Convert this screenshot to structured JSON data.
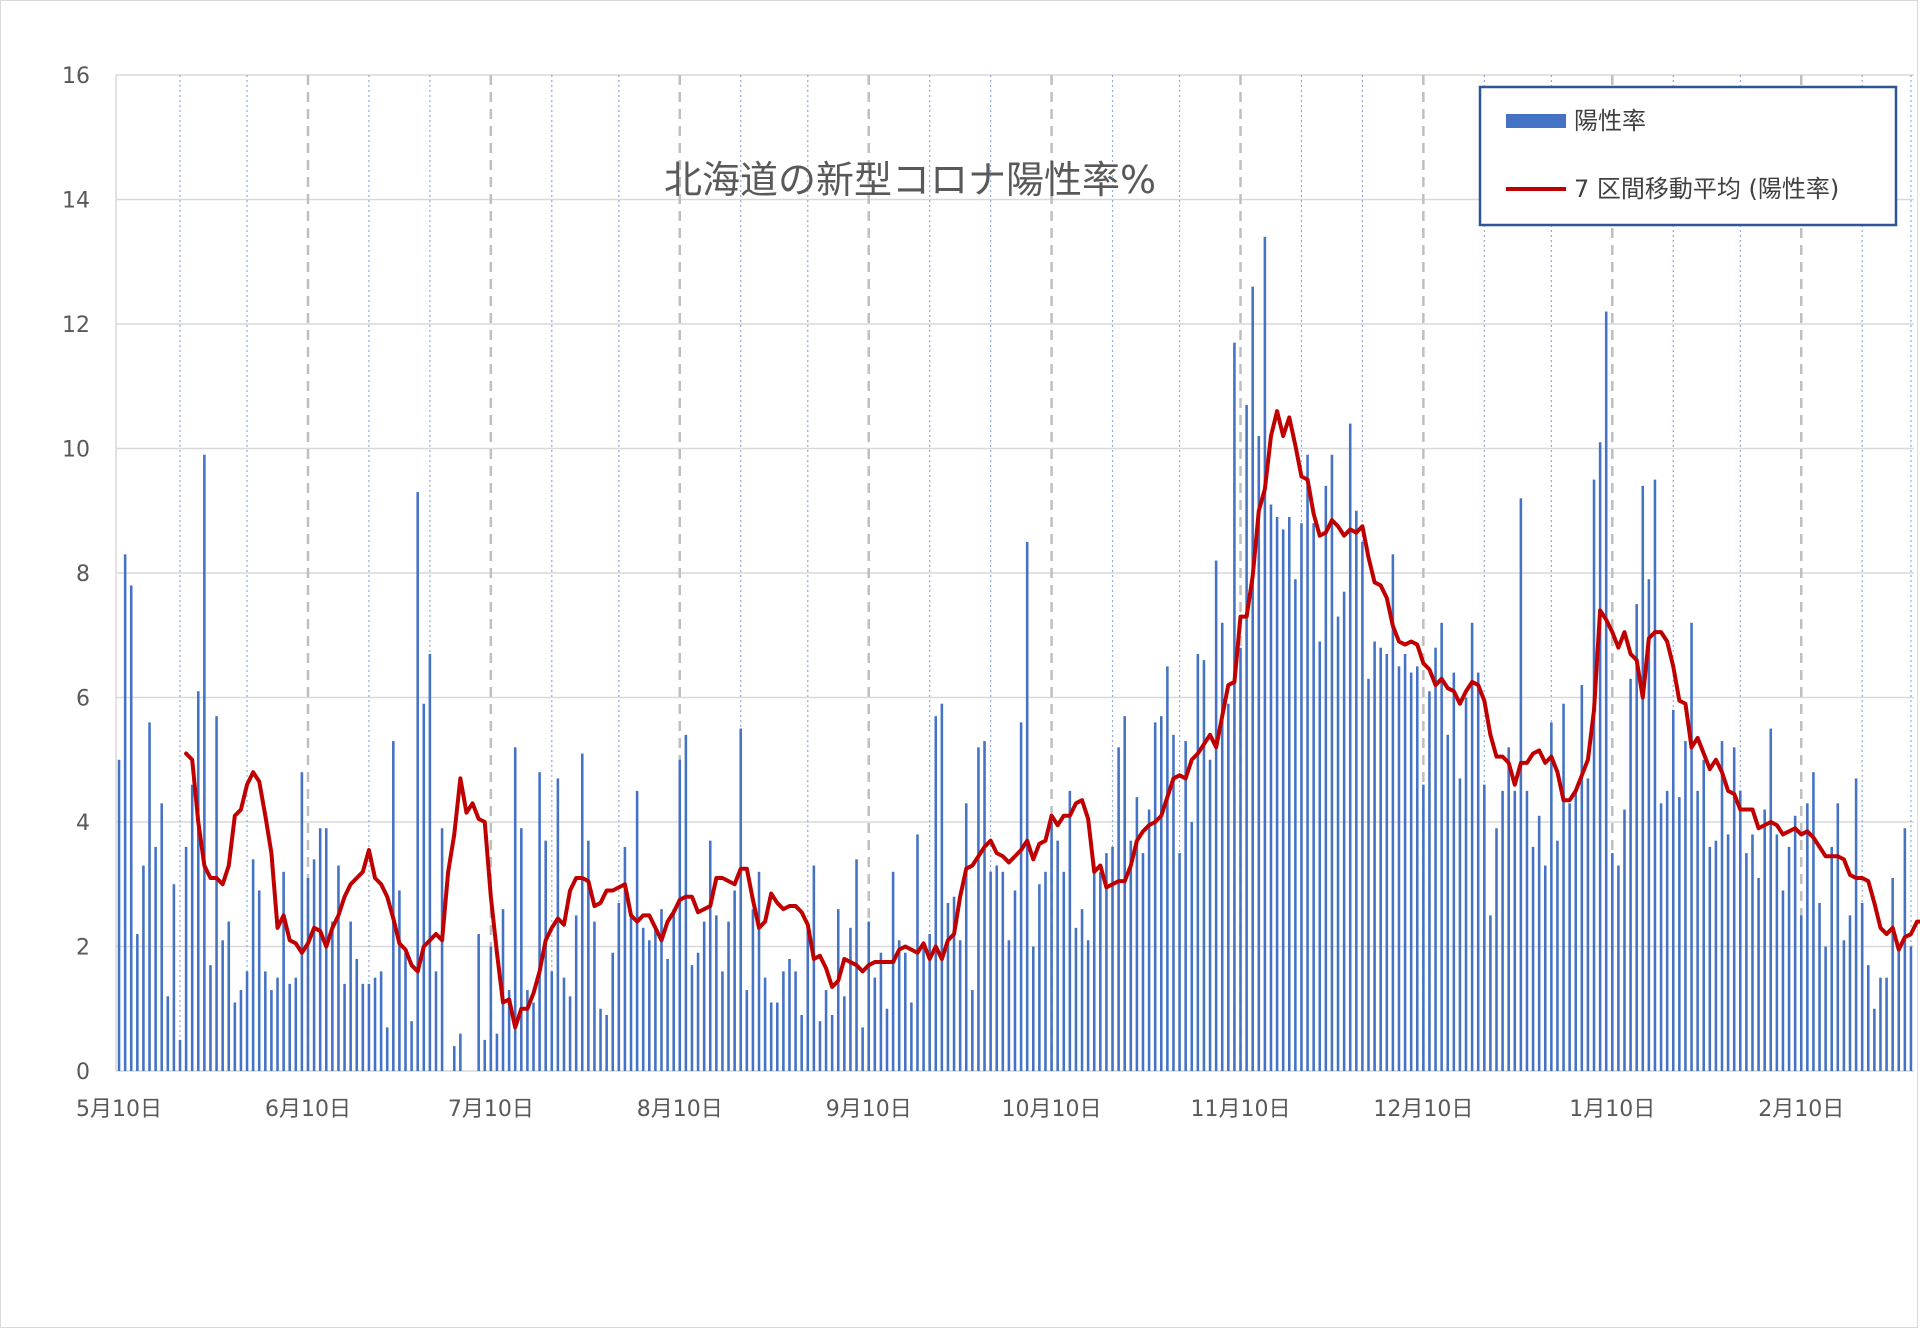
{
  "chart_data": {
    "type": "bar",
    "title": "北海道の新型コロナ陽性率%",
    "xlabel": "",
    "ylabel": "",
    "ylim": [
      0,
      16
    ],
    "yticks": [
      "0",
      "2",
      "4",
      "6",
      "8",
      "10",
      "12",
      "14",
      "16"
    ],
    "x_start": "2020-05-10",
    "x_end": "2021-02-28",
    "x_tick_labels": [
      "5月10日",
      "6月10日",
      "7月10日",
      "8月10日",
      "9月10日",
      "10月10日",
      "11月10日",
      "12月10日",
      "1月10日",
      "2月10日"
    ],
    "x_tick_dates": [
      "2020-05-10",
      "2020-06-10",
      "2020-07-10",
      "2020-08-10",
      "2020-09-10",
      "2020-10-10",
      "2020-11-10",
      "2020-12-10",
      "2021-01-10",
      "2021-02-10"
    ],
    "grid": true,
    "legend_position": "top-right",
    "series": [
      {
        "name": "陽性率",
        "kind": "bar",
        "color": "#4472c4",
        "values": [
          5.0,
          8.3,
          7.8,
          2.2,
          3.3,
          5.6,
          3.6,
          4.3,
          1.2,
          3.0,
          0.5,
          3.6,
          4.6,
          6.1,
          9.9,
          1.7,
          5.7,
          2.1,
          2.4,
          1.1,
          1.3,
          1.6,
          3.4,
          2.9,
          1.6,
          1.3,
          1.5,
          3.2,
          1.4,
          1.5,
          4.8,
          3.1,
          3.4,
          3.9,
          3.9,
          2.4,
          3.3,
          1.4,
          2.4,
          1.8,
          1.4,
          1.4,
          1.5,
          1.6,
          0.7,
          5.3,
          2.9,
          1.9,
          0.8,
          9.3,
          5.9,
          6.7,
          1.6,
          3.9,
          0.0,
          0.4,
          0.6,
          0.0,
          0.0,
          2.2,
          0.5,
          2.0,
          0.6,
          2.6,
          1.3,
          5.2,
          3.9,
          1.3,
          1.1,
          4.8,
          3.7,
          1.6,
          4.7,
          1.5,
          1.2,
          2.5,
          5.1,
          3.7,
          2.4,
          1.0,
          0.9,
          1.9,
          2.7,
          3.6,
          2.5,
          4.5,
          2.3,
          2.1,
          2.3,
          2.6,
          1.8,
          2.6,
          5.0,
          5.4,
          1.7,
          1.9,
          2.4,
          3.7,
          2.5,
          1.6,
          2.4,
          2.9,
          5.5,
          1.3,
          2.6,
          3.2,
          1.5,
          1.1,
          1.1,
          1.6,
          1.8,
          1.6,
          0.9,
          2.3,
          3.3,
          0.8,
          1.3,
          0.9,
          2.6,
          1.2,
          2.3,
          3.4,
          0.7,
          2.4,
          1.5,
          1.9,
          1.0,
          3.2,
          2.1,
          1.9,
          1.1,
          3.8,
          2.0,
          2.2,
          5.7,
          5.9,
          2.7,
          2.8,
          2.1,
          4.3,
          1.3,
          5.2,
          5.3,
          3.2,
          3.3,
          3.2,
          2.1,
          2.9,
          5.6,
          8.5,
          2.0,
          3.0,
          3.2,
          4.0,
          3.7,
          3.2,
          4.5,
          2.3,
          2.6,
          2.1,
          3.3,
          3.2,
          3.5,
          3.6,
          5.2,
          5.7,
          3.7,
          4.4,
          3.5,
          4.2,
          5.6,
          5.7,
          6.5,
          5.4,
          3.5,
          5.3,
          4.0,
          6.7,
          6.6,
          5.0,
          8.2,
          7.2,
          5.9,
          11.7,
          6.8,
          10.7,
          12.6,
          10.2,
          13.4,
          9.1,
          8.9,
          8.7,
          8.9,
          7.9,
          8.8,
          9.9,
          8.8,
          6.9,
          9.4,
          9.9,
          7.3,
          7.7,
          10.4,
          9.0,
          8.5,
          6.3,
          6.9,
          6.8,
          6.7,
          8.3,
          6.5,
          6.7,
          6.4,
          6.5,
          4.6,
          6.1,
          6.8,
          7.2,
          5.4,
          6.4,
          4.7,
          6.0,
          7.2,
          6.4,
          4.6,
          2.5,
          3.9,
          4.5,
          5.2,
          4.5,
          9.2,
          4.5,
          3.6,
          4.1,
          3.3,
          5.6,
          3.7,
          5.9,
          4.3,
          4.5,
          6.2,
          4.7,
          9.5,
          10.1,
          12.2,
          3.5,
          3.3,
          4.2,
          6.3,
          7.5,
          9.4,
          7.9,
          9.5,
          4.3,
          4.5,
          5.8,
          4.4,
          5.3,
          7.2,
          4.5,
          5.0,
          3.6,
          3.7,
          5.3,
          3.8,
          5.2,
          4.5,
          3.5,
          3.8,
          3.1,
          4.2,
          5.5,
          3.8,
          2.9,
          3.6,
          4.1,
          2.5,
          4.3,
          4.8,
          2.7,
          2.0,
          3.6,
          4.3,
          2.1,
          2.5,
          4.7,
          2.7,
          1.7,
          1.0,
          1.5,
          1.5,
          3.1,
          2.0,
          3.9,
          2.0,
          2.5,
          1.4,
          1.9,
          1.9
        ]
      },
      {
        "name": "7 区間移動平均 (陽性率)",
        "kind": "line",
        "color": "#c00000",
        "values": [
          5.1,
          5.0,
          4.0,
          3.3,
          3.1,
          3.1,
          3.0,
          3.3,
          4.1,
          4.2,
          4.6,
          4.8,
          4.65,
          4.1,
          3.5,
          2.3,
          2.5,
          2.1,
          2.05,
          1.9,
          2.05,
          2.3,
          2.25,
          2.0,
          2.3,
          2.5,
          2.8,
          3.0,
          3.1,
          3.2,
          3.55,
          3.1,
          3.0,
          2.8,
          2.45,
          2.05,
          1.95,
          1.7,
          1.6,
          2.0,
          2.1,
          2.2,
          2.1,
          3.2,
          3.8,
          4.7,
          4.15,
          4.3,
          4.05,
          4.0,
          2.8,
          1.9,
          1.1,
          1.15,
          0.7,
          1.0,
          1.0,
          1.25,
          1.6,
          2.1,
          2.3,
          2.45,
          2.35,
          2.9,
          3.1,
          3.1,
          3.05,
          2.65,
          2.7,
          2.9,
          2.9,
          2.95,
          3.0,
          2.5,
          2.4,
          2.5,
          2.5,
          2.3,
          2.1,
          2.4,
          2.55,
          2.75,
          2.8,
          2.8,
          2.55,
          2.6,
          2.65,
          3.1,
          3.1,
          3.05,
          3.0,
          3.25,
          3.25,
          2.75,
          2.3,
          2.4,
          2.85,
          2.7,
          2.6,
          2.65,
          2.65,
          2.55,
          2.35,
          1.8,
          1.85,
          1.65,
          1.35,
          1.45,
          1.8,
          1.75,
          1.7,
          1.6,
          1.7,
          1.75,
          1.75,
          1.75,
          1.75,
          1.95,
          2.0,
          1.95,
          1.9,
          2.05,
          1.8,
          2.0,
          1.8,
          2.1,
          2.2,
          2.8,
          3.25,
          3.3,
          3.45,
          3.6,
          3.7,
          3.5,
          3.45,
          3.35,
          3.45,
          3.55,
          3.7,
          3.4,
          3.65,
          3.7,
          4.1,
          3.95,
          4.1,
          4.1,
          4.3,
          4.35,
          4.05,
          3.2,
          3.3,
          2.95,
          3.0,
          3.05,
          3.05,
          3.3,
          3.7,
          3.85,
          3.95,
          4.0,
          4.1,
          4.4,
          4.7,
          4.75,
          4.7,
          5.0,
          5.1,
          5.25,
          5.4,
          5.2,
          5.7,
          6.2,
          6.25,
          7.3,
          7.3,
          7.95,
          9.0,
          9.35,
          10.2,
          10.6,
          10.2,
          10.5,
          10.05,
          9.55,
          9.5,
          8.95,
          8.6,
          8.65,
          8.85,
          8.75,
          8.6,
          8.7,
          8.65,
          8.75,
          8.25,
          7.85,
          7.8,
          7.6,
          7.15,
          6.9,
          6.85,
          6.9,
          6.85,
          6.55,
          6.45,
          6.2,
          6.3,
          6.15,
          6.1,
          5.9,
          6.1,
          6.25,
          6.2,
          5.95,
          5.4,
          5.05,
          5.05,
          4.95,
          4.6,
          4.95,
          4.95,
          5.1,
          5.15,
          4.95,
          5.05,
          4.8,
          4.35,
          4.35,
          4.5,
          4.75,
          5.0,
          5.8,
          7.4,
          7.25,
          7.05,
          6.8,
          7.05,
          6.7,
          6.6,
          6.0,
          6.95,
          7.05,
          7.05,
          6.9,
          6.5,
          5.95,
          5.9,
          5.2,
          5.35,
          5.1,
          4.85,
          5.0,
          4.8,
          4.5,
          4.45,
          4.2,
          4.2,
          4.2,
          3.9,
          3.95,
          4.0,
          3.95,
          3.8,
          3.85,
          3.9,
          3.8,
          3.85,
          3.75,
          3.6,
          3.45,
          3.45,
          3.45,
          3.4,
          3.15,
          3.1,
          3.1,
          3.05,
          2.7,
          2.3,
          2.2,
          2.3,
          1.95,
          2.15,
          2.2,
          2.4,
          2.4,
          2.45,
          2.2
        ]
      }
    ]
  }
}
